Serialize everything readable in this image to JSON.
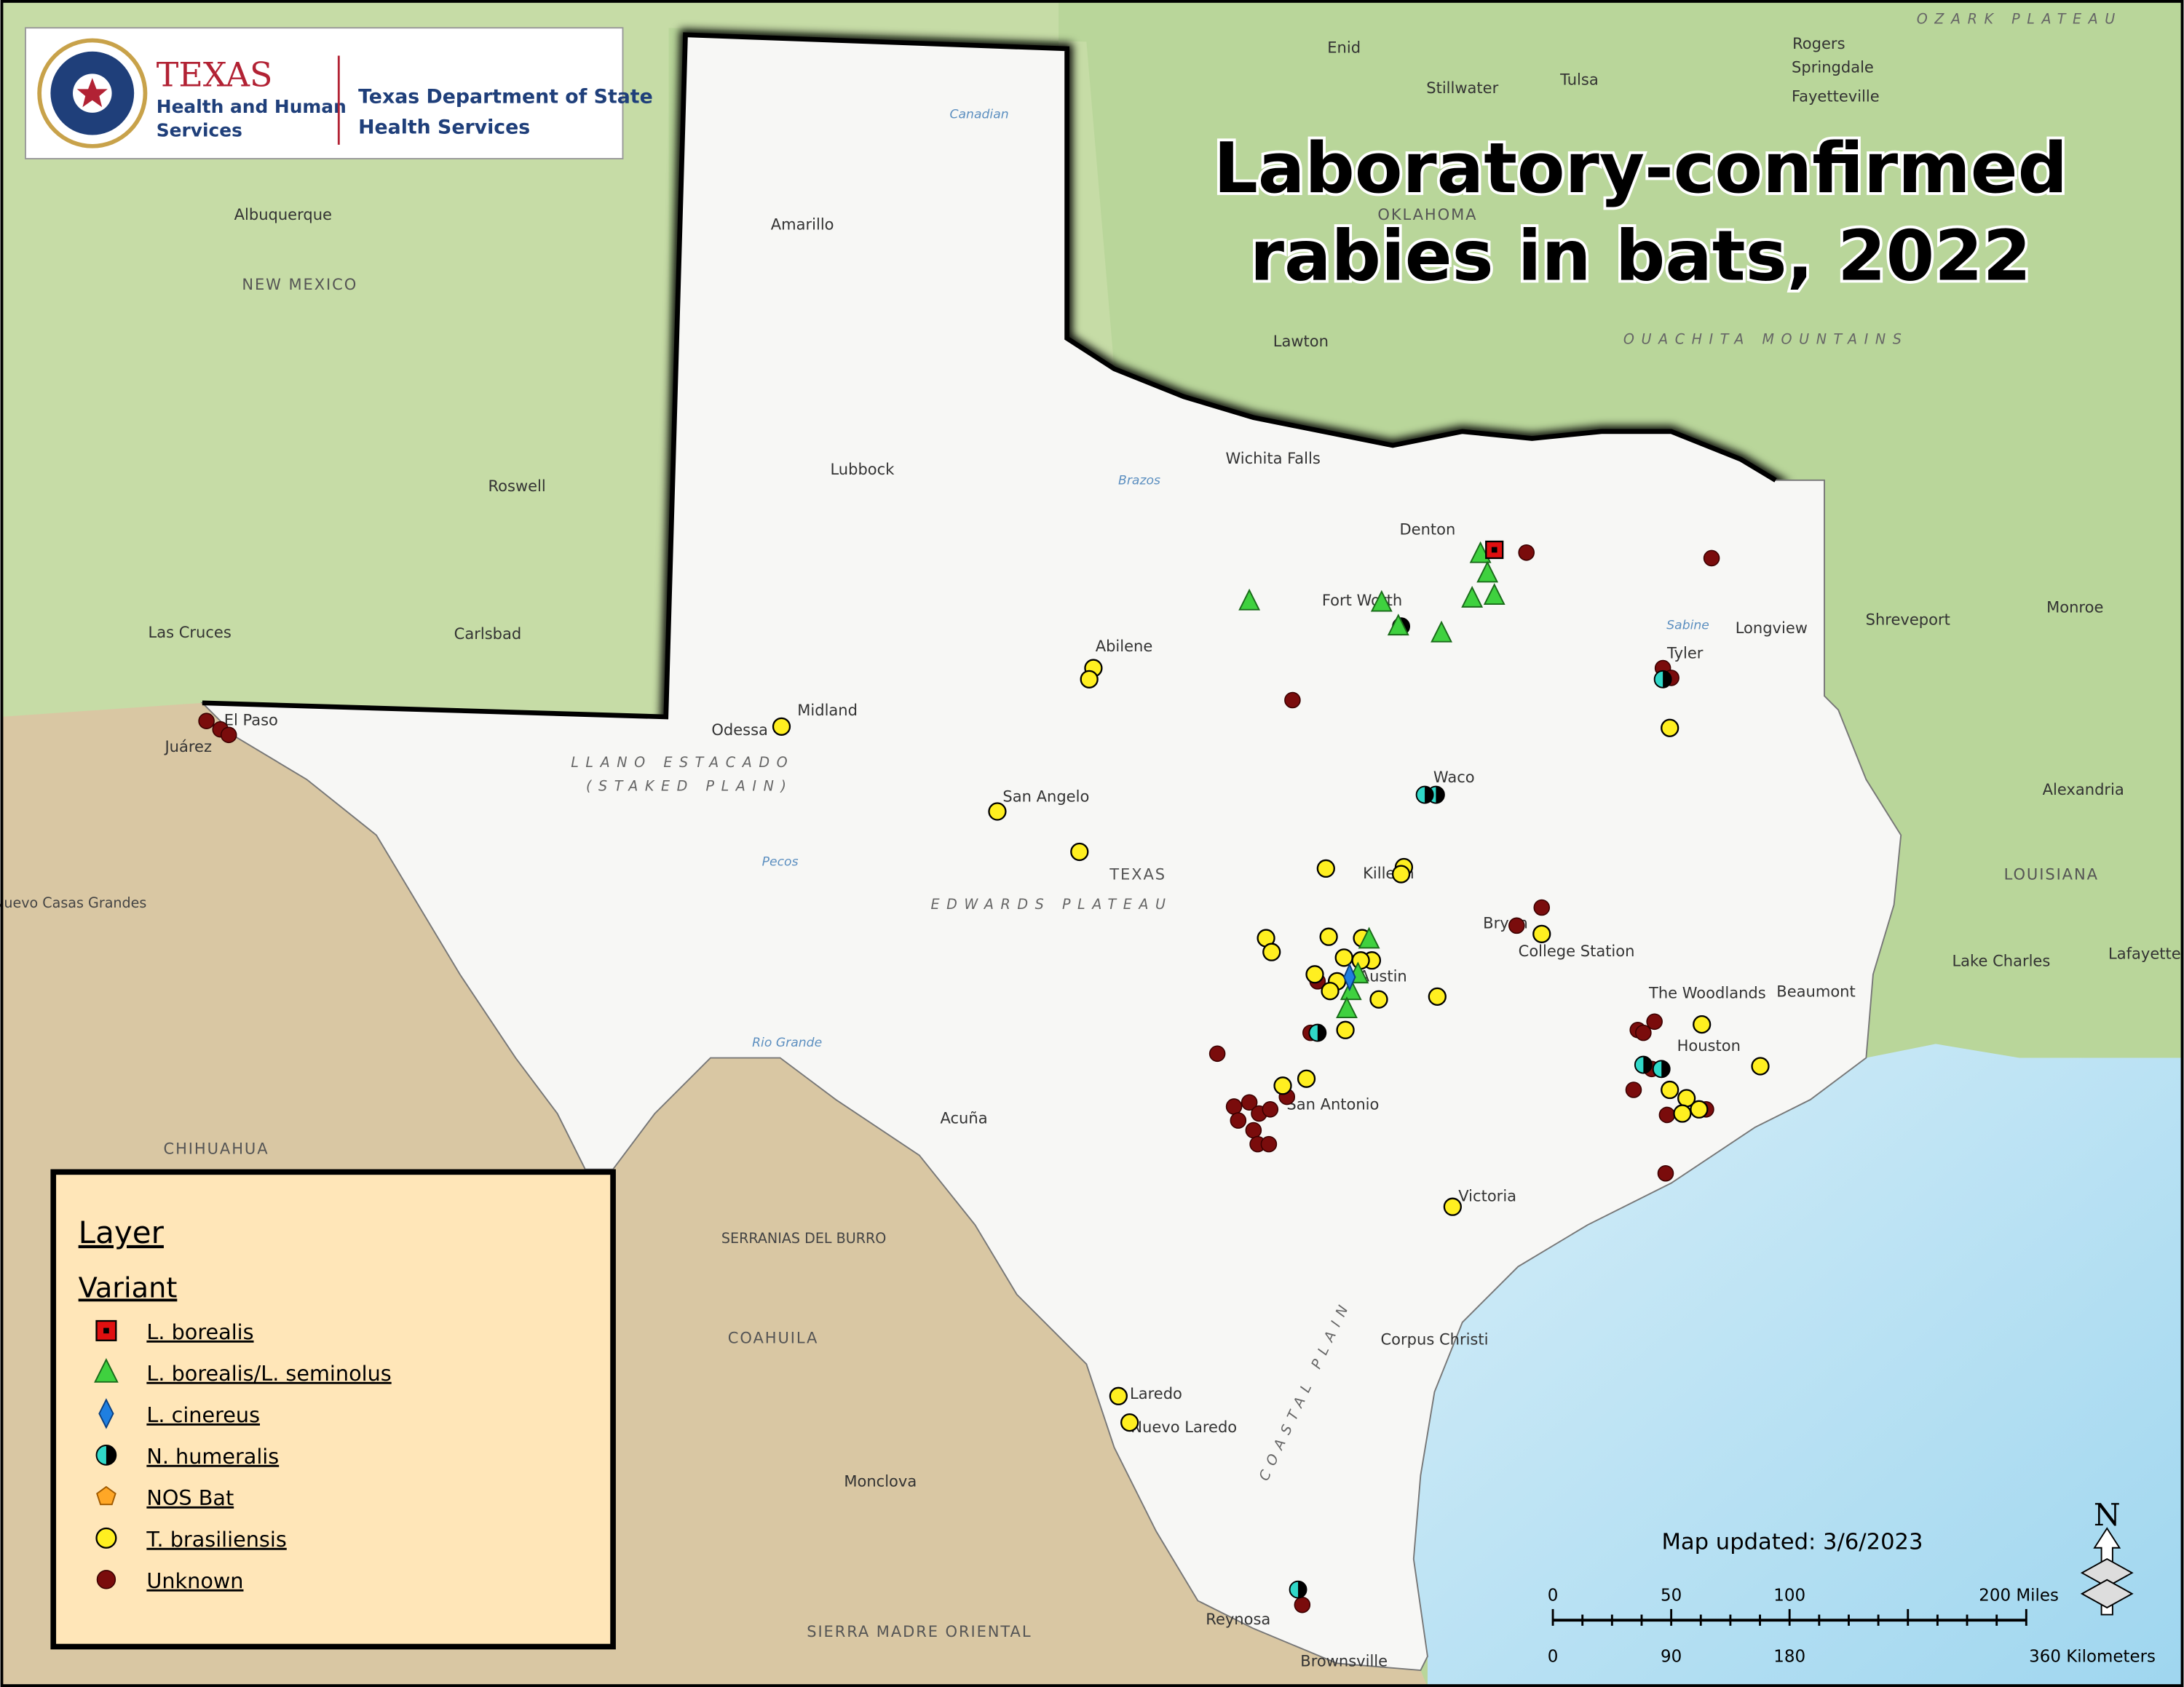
{
  "title_lines": [
    "Laboratory-confirmed",
    "rabies in bats, 2022"
  ],
  "logo": {
    "texas": "TEXAS",
    "hhs_lines": [
      "Health and Human",
      "Services"
    ],
    "dshs_lines": [
      "Texas Department of State",
      "Health Services"
    ]
  },
  "legend": {
    "title": "Layer",
    "subtitle": "Variant",
    "items": [
      "L. borealis",
      "L. borealis/L. seminolus",
      "L. cinereus",
      "N. humeralis",
      "NOS Bat",
      "T. brasiliensis",
      "Unknown"
    ]
  },
  "note": "Map updated: 3/6/2023",
  "scale_bar": {
    "miles": [
      "0",
      "50",
      "100",
      "200 Miles"
    ],
    "kilometers": [
      "0",
      "90",
      "180",
      "360 Kilometers"
    ]
  },
  "north": "N",
  "map_labels": [
    "Amarillo",
    "Lubbock",
    "Abilene",
    "Midland",
    "Odessa",
    "El Paso",
    "Juárez",
    "San Angelo",
    "Wichita Falls",
    "Denton",
    "Fort Worth",
    "Waco",
    "Killeen",
    "Bryan",
    "College Station",
    "Austin",
    "San Antonio",
    "Houston",
    "Beaumont",
    "The Woodlands",
    "Victoria",
    "Corpus Christi",
    "Laredo",
    "Nuevo Laredo",
    "Reynosa",
    "Brownsville",
    "Acuña",
    "Tyler",
    "Longview",
    "Shreveport",
    "Monroe",
    "Alexandria",
    "Lake Charles",
    "Lafayette",
    "LOUISIANA",
    "TEXAS",
    "NEW MEXICO",
    "Albuquerque",
    "Roswell",
    "Carlsbad",
    "Las Cruces",
    "Lawton",
    "Enid",
    "Tulsa",
    "Stillwater",
    "Nuevo Casas Grandes",
    "CHIHUAHUA",
    "COAHUILA",
    "Monclova",
    "SERRANIAS DEL BURRO",
    "SIERRA MADRE ORIENTAL",
    "EDWARDS PLATEAU",
    "LLANO ESTACADO",
    "(STAKED PLAIN)",
    "OUACHITA MOUNTAINS",
    "OZARK PLATEAU",
    "Rogers",
    "Springdale",
    "Fayetteville",
    "Rio Grande",
    "Pecos",
    "Brazos",
    "Canadian",
    "Sabine",
    "COASTAL PLAIN",
    "OKLAHOMA"
  ]
}
